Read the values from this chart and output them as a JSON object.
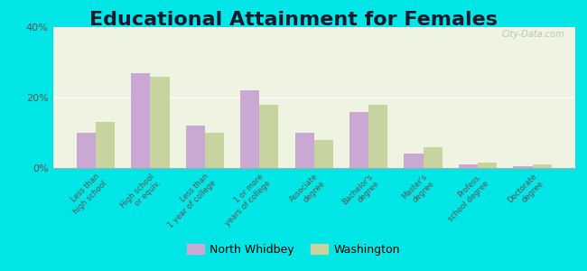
{
  "title": "Educational Attainment for Females",
  "categories": [
    "Less than\nhigh school",
    "High school\nor equiv.",
    "Less than\n1 year of college",
    "1 or more\nyears of college",
    "Associate\ndegree",
    "Bachelor's\ndegree",
    "Master's\ndegree",
    "Profess.\nschool degree",
    "Doctorate\ndegree"
  ],
  "north_whidbey": [
    10,
    27,
    12,
    22,
    10,
    16,
    4,
    1,
    0.5
  ],
  "washington": [
    13,
    26,
    10,
    18,
    8,
    18,
    6,
    1.5,
    1
  ],
  "color_nw": "#c9a8d4",
  "color_wa": "#c8d4a0",
  "background_fig": "#00e5e5",
  "ylim": [
    0,
    40
  ],
  "yticks": [
    0,
    20,
    40
  ],
  "ytick_labels": [
    "0%",
    "20%",
    "40%"
  ],
  "legend_nw": "North Whidbey",
  "legend_wa": "Washington",
  "title_fontsize": 16,
  "bar_width": 0.35
}
